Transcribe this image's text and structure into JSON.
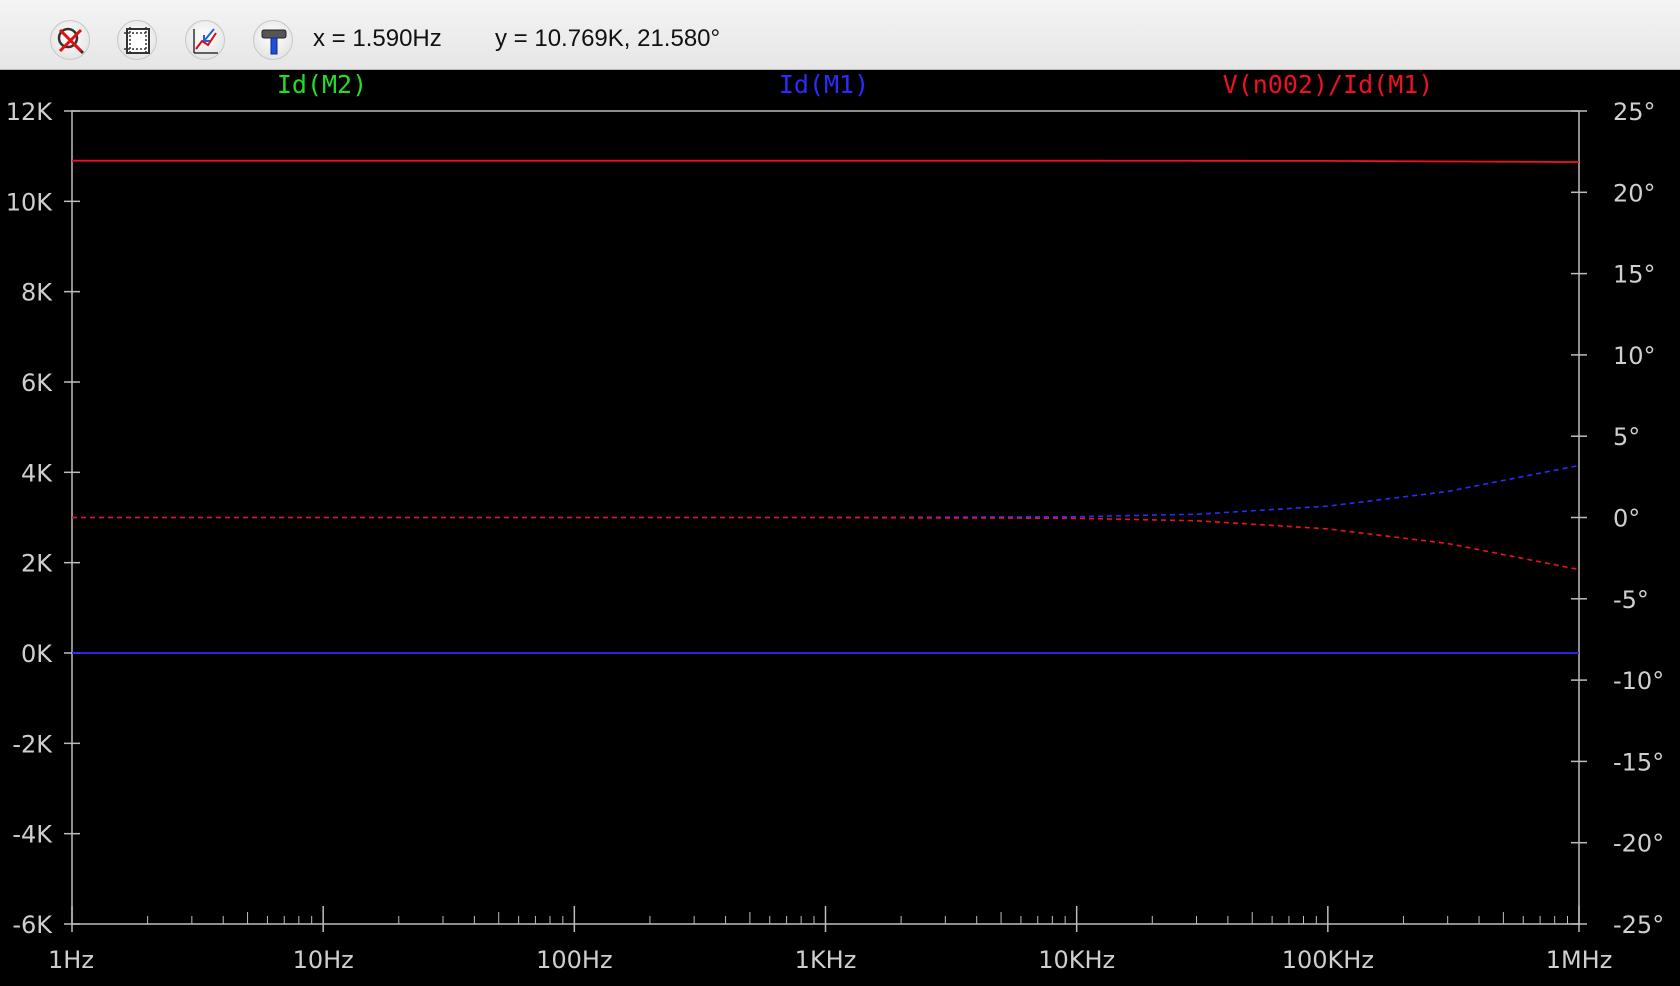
{
  "toolbar": {
    "buttons": [
      {
        "name": "zoom-cancel-icon"
      },
      {
        "name": "autorange-icon"
      },
      {
        "name": "pick-visible-traces-icon"
      },
      {
        "name": "hammer-mark-icon"
      }
    ],
    "x_readout": "x = 1.590Hz",
    "y_readout": "y = 10.769K, 21.580°"
  },
  "colors": {
    "background": "#000000",
    "axis": "#bdbdbd",
    "series_green": "#22dd22",
    "series_blue": "#2b2bff",
    "series_red": "#ee1122"
  },
  "chart_data": {
    "type": "line",
    "x_scale": "log",
    "x_range_hz": [
      1,
      1000000
    ],
    "x_ticks": [
      "1Hz",
      "10Hz",
      "100Hz",
      "1KHz",
      "10KHz",
      "100KHz",
      "1MHz"
    ],
    "left_ticks": [
      "12K",
      "10K",
      "8K",
      "6K",
      "4K",
      "2K",
      "0K",
      "-2K",
      "-4K",
      "-6K"
    ],
    "left_range": [
      -6000,
      12000
    ],
    "right_ticks": [
      "25°",
      "20°",
      "15°",
      "10°",
      "5°",
      "0°",
      "-5°",
      "-10°",
      "-15°",
      "-20°",
      "-25°"
    ],
    "right_range_deg": [
      -25,
      25
    ],
    "series": [
      {
        "name": "Id(M2)",
        "color": "#22dd22",
        "magnitude": [],
        "phase": []
      },
      {
        "name": "Id(M1)",
        "color": "#2b2bff",
        "magnitude": [
          [
            1,
            0
          ],
          [
            10,
            0
          ],
          [
            100,
            0
          ],
          [
            1000,
            0
          ],
          [
            10000,
            0
          ],
          [
            100000,
            0
          ],
          [
            1000000,
            0
          ]
        ],
        "phase": [
          [
            1,
            0
          ],
          [
            1000,
            0
          ],
          [
            10000,
            0.05
          ],
          [
            30000,
            0.2
          ],
          [
            100000,
            0.7
          ],
          [
            300000,
            1.6
          ],
          [
            1000000,
            3.2
          ]
        ]
      },
      {
        "name": "V(n002)/Id(M1)",
        "color": "#ee1122",
        "magnitude": [
          [
            1,
            10900
          ],
          [
            10,
            10900
          ],
          [
            100,
            10900
          ],
          [
            1000,
            10900
          ],
          [
            10000,
            10900
          ],
          [
            100000,
            10895
          ],
          [
            1000000,
            10870
          ]
        ],
        "phase": [
          [
            1,
            0
          ],
          [
            1000,
            0
          ],
          [
            10000,
            -0.05
          ],
          [
            30000,
            -0.2
          ],
          [
            100000,
            -0.7
          ],
          [
            300000,
            -1.6
          ],
          [
            1000000,
            -3.2
          ]
        ]
      }
    ]
  }
}
